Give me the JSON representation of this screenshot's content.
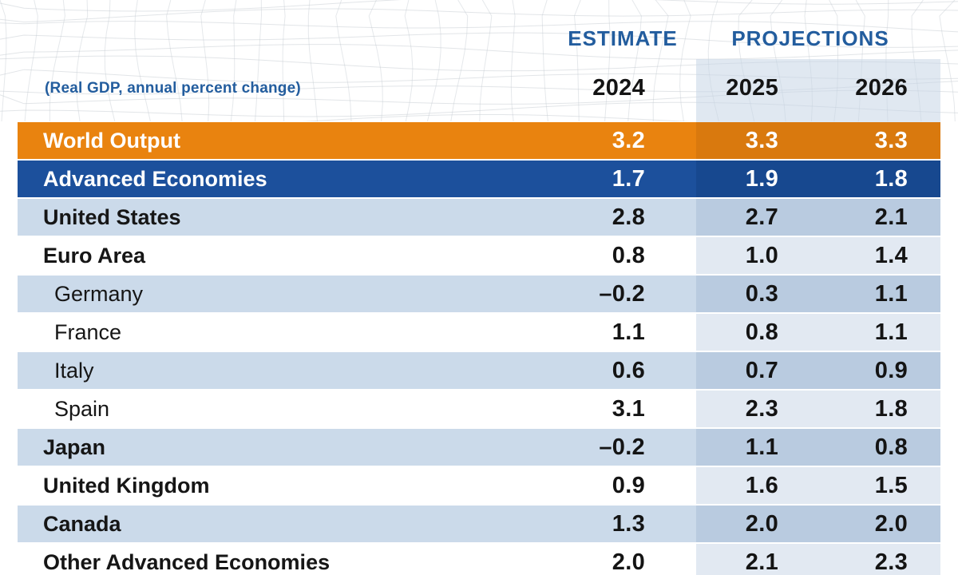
{
  "header": {
    "subtitle": "(Real GDP, annual percent change)",
    "estimate_label": "ESTIMATE",
    "projections_label": "PROJECTIONS",
    "years": [
      "2024",
      "2025",
      "2026"
    ]
  },
  "table": {
    "rows": [
      {
        "label": "World Output",
        "values": [
          "3.2",
          "3.3",
          "3.3"
        ],
        "type": "world",
        "indent": false
      },
      {
        "label": "Advanced Economies",
        "values": [
          "1.7",
          "1.9",
          "1.8"
        ],
        "type": "advanced",
        "indent": false
      },
      {
        "label": "United States",
        "values": [
          "2.8",
          "2.7",
          "2.1"
        ],
        "type": "shaded",
        "indent": false
      },
      {
        "label": "Euro Area",
        "values": [
          "0.8",
          "1.0",
          "1.4"
        ],
        "type": "plain",
        "indent": false
      },
      {
        "label": "Germany",
        "values": [
          "–0.2",
          "0.3",
          "1.1"
        ],
        "type": "shaded",
        "indent": true
      },
      {
        "label": "France",
        "values": [
          "1.1",
          "0.8",
          "1.1"
        ],
        "type": "plain",
        "indent": true
      },
      {
        "label": "Italy",
        "values": [
          "0.6",
          "0.7",
          "0.9"
        ],
        "type": "shaded",
        "indent": true
      },
      {
        "label": "Spain",
        "values": [
          "3.1",
          "2.3",
          "1.8"
        ],
        "type": "plain",
        "indent": true
      },
      {
        "label": "Japan",
        "values": [
          "–0.2",
          "1.1",
          "0.8"
        ],
        "type": "shaded",
        "indent": false
      },
      {
        "label": "United Kingdom",
        "values": [
          "0.9",
          "1.6",
          "1.5"
        ],
        "type": "plain",
        "indent": false
      },
      {
        "label": "Canada",
        "values": [
          "1.3",
          "2.0",
          "2.0"
        ],
        "type": "shaded",
        "indent": false
      },
      {
        "label": "Other Advanced Economies",
        "values": [
          "2.0",
          "2.1",
          "2.3"
        ],
        "type": "plain",
        "indent": false
      }
    ]
  },
  "theme": {
    "imf-blue": "#235D9E",
    "orange": "#E9830F",
    "orange-proj": "#D9790E",
    "dark-blue": "#1C509C",
    "dark-blue-proj": "#17488F",
    "light-row": "#CBDAEA",
    "light-row-proj": "#B9CBE0",
    "white-row-proj": "#E2E9F2"
  },
  "chart_data": {
    "type": "table",
    "subtitle": "(Real GDP, annual percent change)",
    "column_groups": [
      {
        "label": "ESTIMATE",
        "columns": [
          "2024"
        ]
      },
      {
        "label": "PROJECTIONS",
        "columns": [
          "2025",
          "2026"
        ]
      }
    ],
    "columns": [
      "2024",
      "2025",
      "2026"
    ],
    "rows": [
      {
        "label": "World Output",
        "values": [
          3.2,
          3.3,
          3.3
        ]
      },
      {
        "label": "Advanced Economies",
        "values": [
          1.7,
          1.9,
          1.8
        ]
      },
      {
        "label": "United States",
        "values": [
          2.8,
          2.7,
          2.1
        ]
      },
      {
        "label": "Euro Area",
        "values": [
          0.8,
          1.0,
          1.4
        ]
      },
      {
        "label": "Germany",
        "values": [
          -0.2,
          0.3,
          1.1
        ]
      },
      {
        "label": "France",
        "values": [
          1.1,
          0.8,
          1.1
        ]
      },
      {
        "label": "Italy",
        "values": [
          0.6,
          0.7,
          0.9
        ]
      },
      {
        "label": "Spain",
        "values": [
          3.1,
          2.3,
          1.8
        ]
      },
      {
        "label": "Japan",
        "values": [
          -0.2,
          1.1,
          0.8
        ]
      },
      {
        "label": "United Kingdom",
        "values": [
          0.9,
          1.6,
          1.5
        ]
      },
      {
        "label": "Canada",
        "values": [
          1.3,
          2.0,
          2.0
        ]
      },
      {
        "label": "Other Advanced Economies",
        "values": [
          2.0,
          2.1,
          2.3
        ]
      }
    ]
  }
}
